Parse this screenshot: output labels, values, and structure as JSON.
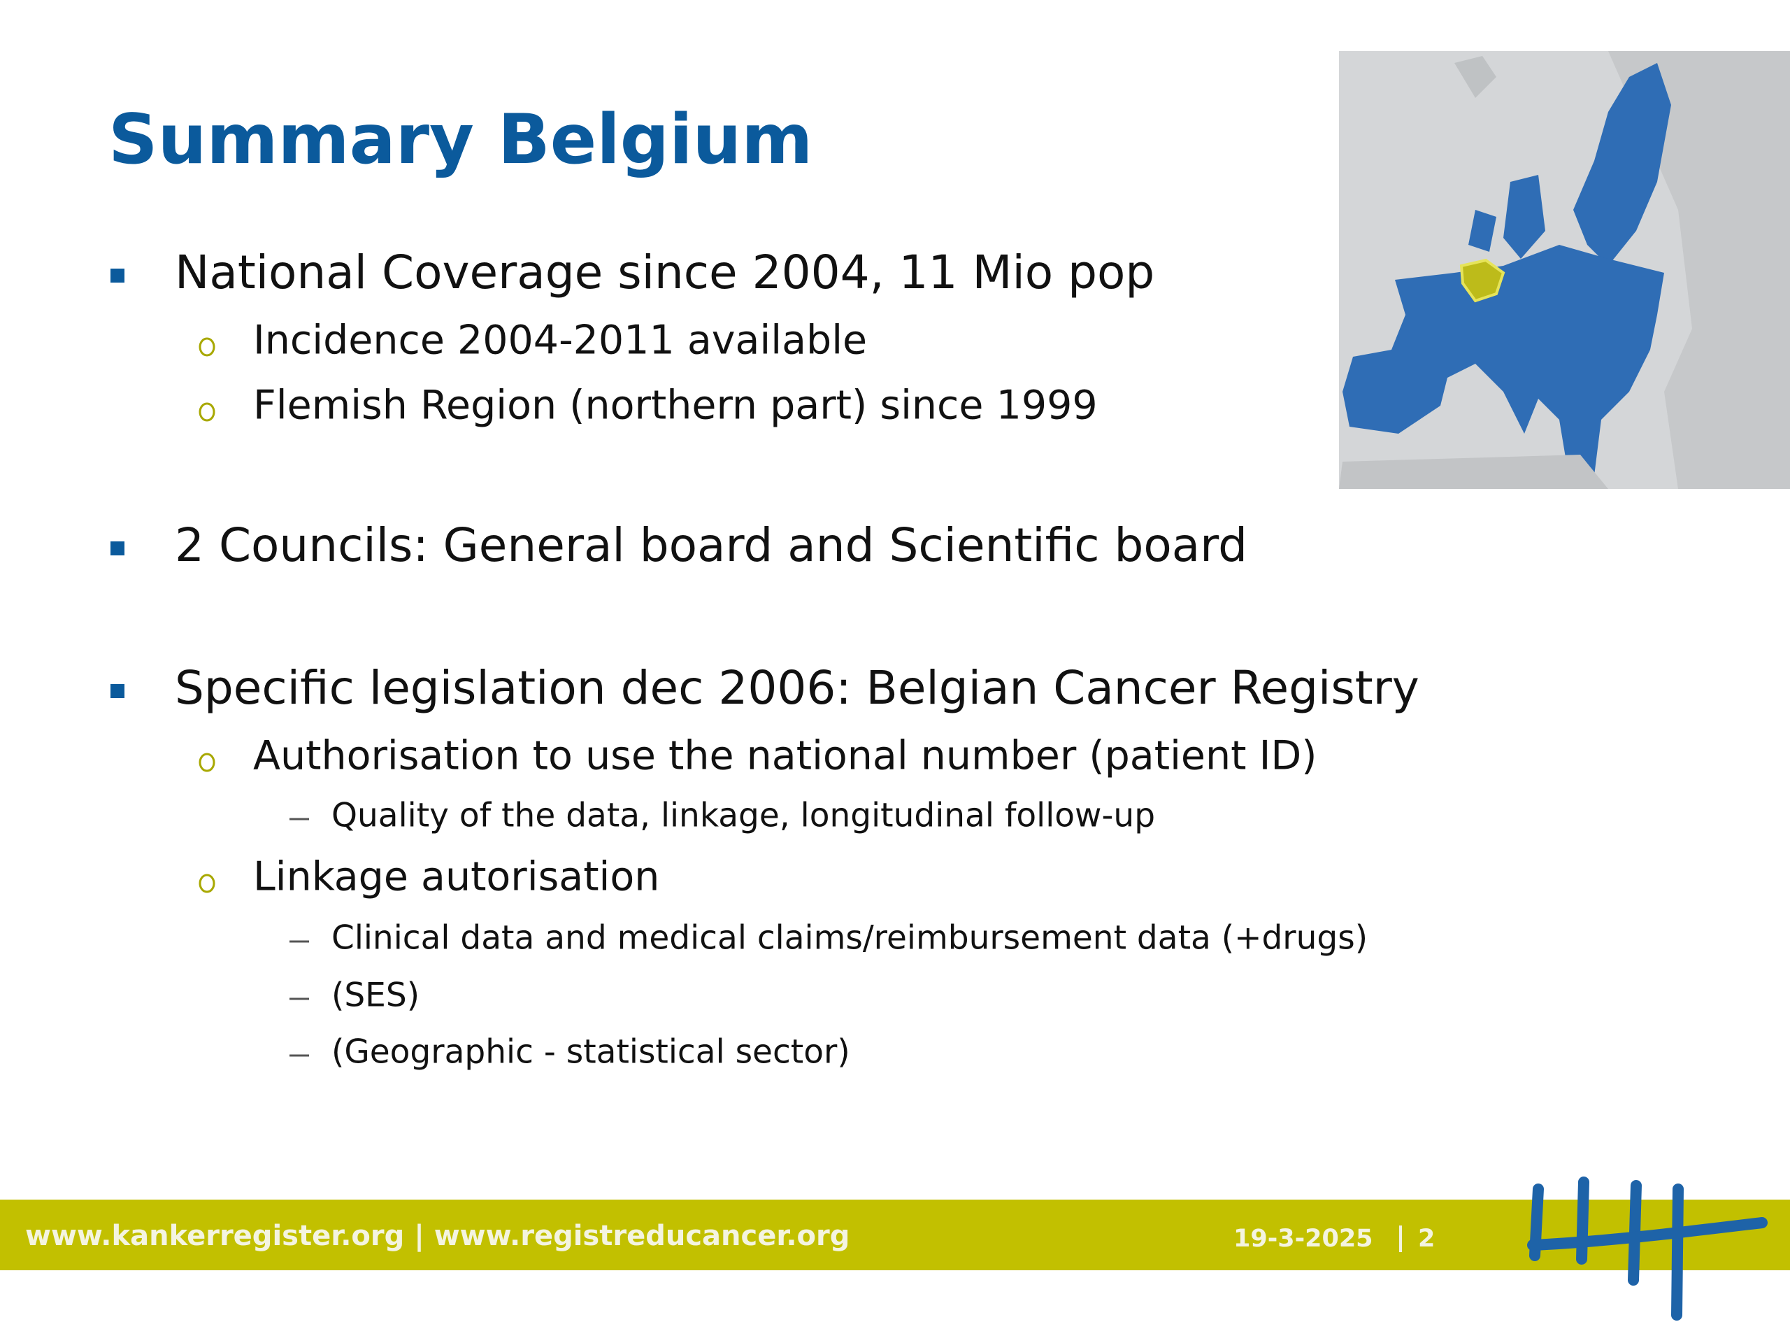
{
  "header": {
    "title": "Summary Belgium"
  },
  "bullets": [
    {
      "text": "National Coverage since 2004, 11 Mio pop",
      "sub": [
        {
          "text": "Incidence 2004-2011 available"
        },
        {
          "text": "Flemish Region (northern part) since 1999"
        }
      ]
    },
    {
      "text": "2 Councils: General board and Scientific board"
    },
    {
      "text": "Specific legislation dec 2006: Belgian Cancer Registry",
      "sub": [
        {
          "text": "Authorisation to use the national number (patient ID)",
          "sub": [
            {
              "text": "Quality of the data, linkage, longitudinal follow-up"
            }
          ]
        },
        {
          "text": "Linkage autorisation",
          "sub": [
            {
              "text": "Clinical data and medical claims/reimbursement data (+drugs)"
            },
            {
              "text": "(SES)"
            },
            {
              "text": "(Geographic - statistical sector)"
            }
          ]
        }
      ]
    }
  ],
  "footer": {
    "links": "www.kankerregister.org | www.registreducancer.org",
    "date": "19-3-2025",
    "page": "2"
  }
}
